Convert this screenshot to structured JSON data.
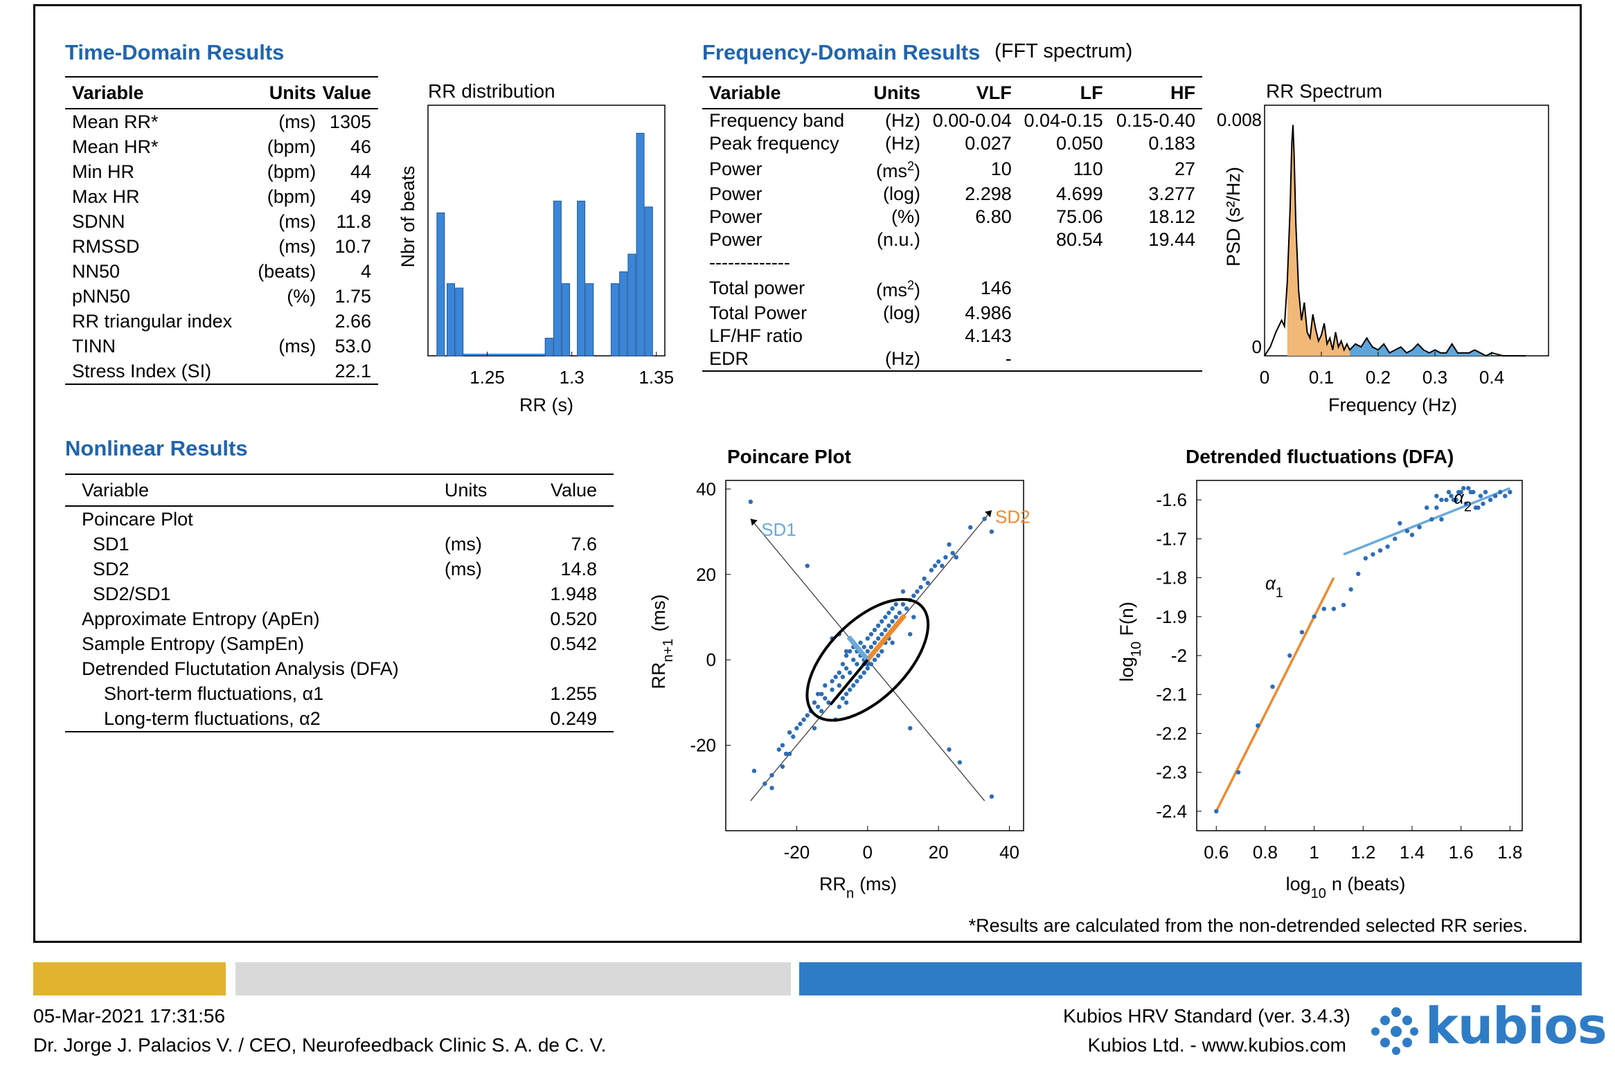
{
  "time_domain": {
    "title": "Time-Domain Results",
    "headers": [
      "Variable",
      "Units",
      "Value"
    ],
    "rows": [
      [
        "Mean RR*",
        "(ms)",
        "1305"
      ],
      [
        "Mean HR*",
        "(bpm)",
        "46"
      ],
      [
        "Min HR",
        "(bpm)",
        "44"
      ],
      [
        "Max HR",
        "(bpm)",
        "49"
      ],
      [
        "SDNN",
        "(ms)",
        "11.8"
      ],
      [
        "RMSSD",
        "(ms)",
        "10.7"
      ],
      [
        "NN50",
        "(beats)",
        "4"
      ],
      [
        "pNN50",
        "(%)",
        "1.75"
      ],
      [
        "RR triangular index",
        "",
        "2.66"
      ],
      [
        "TINN",
        "(ms)",
        "53.0"
      ],
      [
        "Stress Index (SI)",
        "",
        "22.1"
      ]
    ]
  },
  "frequency_domain": {
    "title": "Frequency-Domain Results",
    "subtitle": "(FFT spectrum)",
    "headers": [
      "Variable",
      "Units",
      "VLF",
      "LF",
      "HF"
    ],
    "rows": [
      [
        "Frequency band",
        "(Hz)",
        "0.00-0.04",
        "0.04-0.15",
        "0.15-0.40"
      ],
      [
        "Peak frequency",
        "(Hz)",
        "0.027",
        "0.050",
        "0.183"
      ],
      [
        "Power",
        "(ms2)",
        "10",
        "110",
        "27"
      ],
      [
        "Power",
        "(log)",
        "2.298",
        "4.699",
        "3.277"
      ],
      [
        "Power",
        "(%)",
        "6.80",
        "75.06",
        "18.12"
      ],
      [
        "Power",
        "(n.u.)",
        "",
        "80.54",
        "19.44"
      ],
      [
        "-------------",
        "",
        "",
        "",
        ""
      ],
      [
        "Total power",
        "(ms2)",
        "146",
        "",
        ""
      ],
      [
        "Total Power",
        "(log)",
        "4.986",
        "",
        ""
      ],
      [
        "LF/HF ratio",
        "",
        "4.143",
        "",
        ""
      ],
      [
        "EDR",
        "(Hz)",
        "-",
        "",
        ""
      ]
    ]
  },
  "nonlinear": {
    "title": "Nonlinear Results",
    "headers": [
      "Variable",
      "Units",
      "Value"
    ],
    "rows": [
      {
        "label": "Poincare Plot",
        "units": "",
        "value": "",
        "indent": 0
      },
      {
        "label": "SD1",
        "units": "(ms)",
        "value": "7.6",
        "indent": 1
      },
      {
        "label": "SD2",
        "units": "(ms)",
        "value": "14.8",
        "indent": 1
      },
      {
        "label": "SD2/SD1",
        "units": "",
        "value": "1.948",
        "indent": 1
      },
      {
        "label": "Approximate Entropy (ApEn)",
        "units": "",
        "value": "0.520",
        "indent": 0
      },
      {
        "label": "Sample Entropy (SampEn)",
        "units": "",
        "value": "0.542",
        "indent": 0
      },
      {
        "label": "Detrended Fluctutation Analysis (DFA)",
        "units": "",
        "value": "",
        "indent": 0
      },
      {
        "label": "Short-term fluctuations,  α1",
        "units": "",
        "value": "1.255",
        "indent": 2
      },
      {
        "label": "Long-term fluctuations,  α2",
        "units": "",
        "value": "0.249",
        "indent": 2
      }
    ]
  },
  "footnote": "*Results are calculated from the non-detrended selected RR series.",
  "footer": {
    "datetime": "05-Mar-2021 17:31:56",
    "author": "Dr. Jorge J. Palacios V. / CEO, Neurofeedback Clinic S. A. de C. V.",
    "software": "Kubios HRV Standard (ver. 3.4.3)",
    "company": "Kubios Ltd. - www.kubios.com",
    "logo_text": "kubios",
    "bar_colors": [
      "#e3b32f",
      "#d9d9d9",
      "#2f7cc6"
    ]
  },
  "colors": {
    "title_blue": "#2064ae",
    "point_blue": "#2d6db5",
    "bar_blue": "#3b86d8",
    "orange": "#ee8a2f",
    "light_blue": "#6aa9dc",
    "psd_fill_orange": "#f1b877",
    "psd_fill_blue": "#5ea6da"
  },
  "chart_data": [
    {
      "id": "rr_distribution",
      "type": "bar",
      "title": "RR distribution",
      "xlabel": "RR (s)",
      "ylabel": "Nbr of beats",
      "xlim": [
        1.215,
        1.355
      ],
      "ylim": [
        0,
        17
      ],
      "xticks": [
        "1.25",
        "1.3",
        "1.35"
      ],
      "bar_width": 0.0045,
      "x": [
        1.2225,
        1.2285,
        1.2335,
        1.2865,
        1.2915,
        1.2965,
        1.3055,
        1.3105,
        1.3255,
        1.3305,
        1.3355,
        1.3405,
        1.3455
      ],
      "values": [
        9.7,
        4.9,
        4.6,
        1.2,
        10.5,
        4.9,
        10.5,
        4.9,
        4.9,
        5.7,
        6.9,
        15.1,
        10.1
      ]
    },
    {
      "id": "rr_spectrum",
      "type": "area",
      "title": "RR Spectrum",
      "xlabel": "Frequency (Hz)",
      "ylabel": "PSD (s²/Hz)",
      "xlim": [
        0,
        0.5
      ],
      "ylim": [
        0,
        0.008
      ],
      "xticks": [
        "0",
        "0.1",
        "0.2",
        "0.3",
        "0.4"
      ],
      "yticks": [
        "0",
        "0.008"
      ],
      "bands": [
        {
          "name": "LF",
          "range": [
            0.04,
            0.15
          ],
          "color": "orange"
        },
        {
          "name": "HF",
          "range": [
            0.15,
            0.4
          ],
          "color": "blue"
        }
      ],
      "x": [
        0,
        0.01,
        0.02,
        0.03,
        0.035,
        0.04,
        0.045,
        0.048,
        0.05,
        0.052,
        0.055,
        0.06,
        0.065,
        0.07,
        0.075,
        0.08,
        0.085,
        0.09,
        0.095,
        0.1,
        0.105,
        0.11,
        0.115,
        0.12,
        0.125,
        0.13,
        0.135,
        0.14,
        0.145,
        0.15,
        0.16,
        0.17,
        0.18,
        0.183,
        0.19,
        0.2,
        0.21,
        0.22,
        0.23,
        0.24,
        0.25,
        0.26,
        0.27,
        0.28,
        0.29,
        0.3,
        0.31,
        0.32,
        0.33,
        0.34,
        0.35,
        0.36,
        0.37,
        0.38,
        0.39,
        0.4,
        0.42,
        0.44,
        0.46
      ],
      "y": [
        0,
        0.0003,
        0.0008,
        0.0012,
        0.001,
        0.0025,
        0.005,
        0.0072,
        0.0078,
        0.0068,
        0.0045,
        0.0022,
        0.0012,
        0.0018,
        0.0008,
        0.0006,
        0.0014,
        0.0009,
        0.0005,
        0.0007,
        0.0011,
        0.0004,
        0.0006,
        0.0002,
        0.0008,
        0.0003,
        0.0005,
        0.0002,
        0.0004,
        0.0002,
        0.0004,
        0.0003,
        0.0006,
        0.0005,
        0.0003,
        0.0002,
        0.0004,
        0.0001,
        0.0002,
        0.0003,
        0.0001,
        0.0002,
        0.0004,
        0.0002,
        0.0001,
        0.0002,
        0.0001,
        0.0001,
        0.0004,
        0.0001,
        0.0001,
        0.0001,
        0.0002,
        0.0001,
        0,
        0.0001,
        0,
        0,
        0
      ]
    },
    {
      "id": "poincare",
      "type": "scatter",
      "title": "Poincare Plot",
      "xlabel": "RRn (ms)",
      "ylabel": "RRn+1 (ms)",
      "xlim": [
        -40,
        44
      ],
      "ylim": [
        -40,
        42
      ],
      "xticks": [
        -20,
        0,
        20,
        40
      ],
      "yticks": [
        -20,
        0,
        20,
        40
      ],
      "sd1": 7.6,
      "sd2": 14.8,
      "labels": [
        "SD1",
        "SD2"
      ],
      "points": [
        [
          -33,
          37
        ],
        [
          -32,
          -26
        ],
        [
          -29,
          -29
        ],
        [
          -27,
          -30
        ],
        [
          -27,
          -27
        ],
        [
          -25,
          -21
        ],
        [
          -24,
          -25
        ],
        [
          -23,
          -22
        ],
        [
          -24,
          -20
        ],
        [
          -22,
          -17
        ],
        [
          -21,
          -18
        ],
        [
          -20,
          -16
        ],
        [
          -19,
          -15
        ],
        [
          -17,
          -13
        ],
        [
          -18,
          -14
        ],
        [
          -16,
          -12
        ],
        [
          -15,
          -10
        ],
        [
          -14,
          -11
        ],
        [
          -13,
          -8
        ],
        [
          -12,
          -9
        ],
        [
          -12,
          -6
        ],
        [
          -11,
          -10
        ],
        [
          -10,
          -7
        ],
        [
          -10,
          -5
        ],
        [
          -9,
          -4
        ],
        [
          -8,
          -6
        ],
        [
          -8,
          -3
        ],
        [
          -7,
          -4
        ],
        [
          -7,
          -1
        ],
        [
          -6,
          -2
        ],
        [
          -6,
          1
        ],
        [
          -5,
          -3
        ],
        [
          -5,
          2
        ],
        [
          -4,
          0
        ],
        [
          -4,
          3
        ],
        [
          -3,
          -1
        ],
        [
          -3,
          2
        ],
        [
          -2,
          1
        ],
        [
          -2,
          4
        ],
        [
          -1,
          0
        ],
        [
          -1,
          3
        ],
        [
          0,
          2
        ],
        [
          0,
          5
        ],
        [
          1,
          3
        ],
        [
          1,
          6
        ],
        [
          2,
          4
        ],
        [
          2,
          7
        ],
        [
          3,
          5
        ],
        [
          3,
          8
        ],
        [
          4,
          6
        ],
        [
          4,
          9
        ],
        [
          5,
          7
        ],
        [
          5,
          10
        ],
        [
          6,
          8
        ],
        [
          6,
          11
        ],
        [
          7,
          9
        ],
        [
          7,
          12
        ],
        [
          8,
          10
        ],
        [
          9,
          11
        ],
        [
          10,
          13
        ],
        [
          11,
          12
        ],
        [
          12,
          14
        ],
        [
          13,
          15
        ],
        [
          14,
          16
        ],
        [
          15,
          17
        ],
        [
          16,
          19
        ],
        [
          17,
          18
        ],
        [
          18,
          21
        ],
        [
          19,
          22
        ],
        [
          20,
          23
        ],
        [
          21,
          22
        ],
        [
          22,
          24
        ],
        [
          23,
          27
        ],
        [
          24,
          25
        ],
        [
          25,
          24
        ],
        [
          29,
          31
        ],
        [
          33,
          33
        ],
        [
          35,
          30
        ],
        [
          -8,
          -11
        ],
        [
          -7,
          -9
        ],
        [
          -6,
          -8
        ],
        [
          -5,
          -7
        ],
        [
          -4,
          -6
        ],
        [
          -3,
          -5
        ],
        [
          -2,
          -4
        ],
        [
          -1,
          -3
        ],
        [
          0,
          -2
        ],
        [
          1,
          -1
        ],
        [
          2,
          0
        ],
        [
          3,
          1
        ],
        [
          4,
          2
        ],
        [
          -10,
          5
        ],
        [
          -8,
          6
        ],
        [
          -6,
          2
        ],
        [
          -17,
          22
        ],
        [
          -9,
          -14
        ],
        [
          -15,
          -16
        ],
        [
          -22,
          -22
        ],
        [
          12,
          6
        ],
        [
          13,
          10
        ],
        [
          8,
          13
        ],
        [
          10,
          16
        ],
        [
          7,
          4
        ],
        [
          5,
          4
        ],
        [
          12,
          -16
        ],
        [
          23,
          -21
        ],
        [
          26,
          -24
        ],
        [
          35,
          -32
        ],
        [
          -14,
          -8
        ],
        [
          -13,
          -12
        ],
        [
          -6,
          -10
        ],
        [
          0,
          -1
        ],
        [
          1,
          1
        ],
        [
          -1,
          -1
        ],
        [
          2,
          2
        ],
        [
          6,
          5
        ],
        [
          7,
          7
        ]
      ]
    },
    {
      "id": "dfa",
      "type": "scatter",
      "title": "Detrended fluctuations (DFA)",
      "xlabel": "log10 n (beats)",
      "ylabel": "log10 F(n)",
      "xlim": [
        0.52,
        1.85
      ],
      "ylim": [
        -2.45,
        -1.55
      ],
      "xticks": [
        "0.6",
        "0.8",
        "1",
        "1.2",
        "1.4",
        "1.6",
        "1.8"
      ],
      "yticks": [
        "-1.6",
        "-1.7",
        "-1.8",
        "-1.9",
        "-2",
        "-2.1",
        "-2.2",
        "-2.3",
        "-2.4"
      ],
      "labels": [
        "α1",
        "α2"
      ],
      "fit1": [
        [
          0.6,
          -2.4
        ],
        [
          1.08,
          -1.8
        ]
      ],
      "fit2": [
        [
          1.12,
          -1.74
        ],
        [
          1.8,
          -1.57
        ]
      ],
      "points": [
        [
          0.6,
          -2.4
        ],
        [
          0.69,
          -2.3
        ],
        [
          0.77,
          -2.18
        ],
        [
          0.83,
          -2.08
        ],
        [
          0.9,
          -2.0
        ],
        [
          0.95,
          -1.94
        ],
        [
          1.0,
          -1.9
        ],
        [
          1.04,
          -1.88
        ],
        [
          1.08,
          -1.88
        ],
        [
          1.12,
          -1.87
        ],
        [
          1.15,
          -1.83
        ],
        [
          1.18,
          -1.79
        ],
        [
          1.21,
          -1.75
        ],
        [
          1.24,
          -1.74
        ],
        [
          1.27,
          -1.73
        ],
        [
          1.3,
          -1.72
        ],
        [
          1.33,
          -1.7
        ],
        [
          1.35,
          -1.66
        ],
        [
          1.38,
          -1.68
        ],
        [
          1.4,
          -1.69
        ],
        [
          1.43,
          -1.67
        ],
        [
          1.46,
          -1.62
        ],
        [
          1.48,
          -1.65
        ],
        [
          1.5,
          -1.62
        ],
        [
          1.52,
          -1.65
        ],
        [
          1.54,
          -1.6
        ],
        [
          1.56,
          -1.59
        ],
        [
          1.58,
          -1.6
        ],
        [
          1.6,
          -1.58
        ],
        [
          1.62,
          -1.61
        ],
        [
          1.64,
          -1.58
        ],
        [
          1.66,
          -1.62
        ],
        [
          1.68,
          -1.59
        ],
        [
          1.7,
          -1.58
        ],
        [
          1.72,
          -1.6
        ],
        [
          1.74,
          -1.59
        ],
        [
          1.76,
          -1.58
        ],
        [
          1.78,
          -1.59
        ],
        [
          1.8,
          -1.58
        ],
        [
          1.5,
          -1.59
        ],
        [
          1.52,
          -1.6
        ],
        [
          1.55,
          -1.58
        ],
        [
          1.57,
          -1.6
        ],
        [
          1.59,
          -1.58
        ],
        [
          1.61,
          -1.57
        ],
        [
          1.63,
          -1.57
        ],
        [
          1.65,
          -1.58
        ],
        [
          1.67,
          -1.62
        ],
        [
          1.69,
          -1.61
        ]
      ]
    }
  ]
}
